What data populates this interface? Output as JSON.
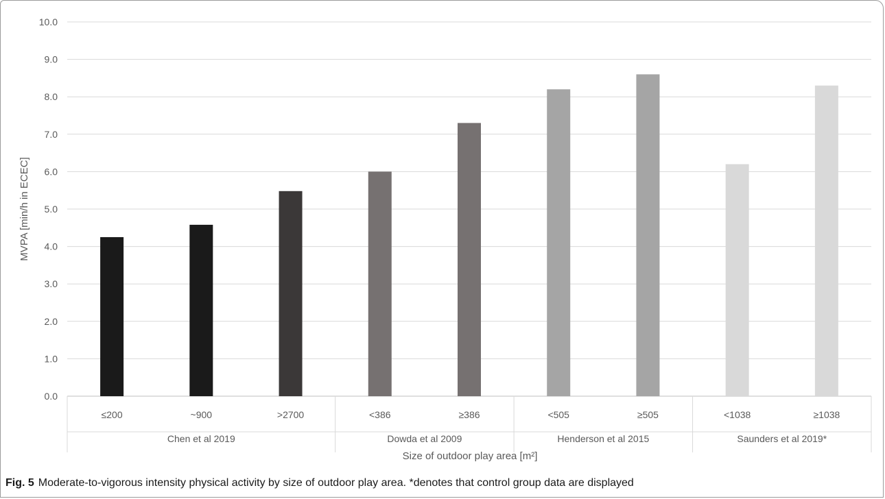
{
  "chart_data": {
    "type": "bar",
    "title": "",
    "ylabel": "MVPA [min/h in ECEC]",
    "xlabel": "Size of outdoor play area [m²]",
    "ylim": [
      0,
      10
    ],
    "yticks": [
      "0.0",
      "1.0",
      "2.0",
      "3.0",
      "4.0",
      "5.0",
      "6.0",
      "7.0",
      "8.0",
      "9.0",
      "10.0"
    ],
    "grid": true,
    "groups": [
      {
        "name": "Chen et al 2019",
        "color": "#1e1c1c",
        "bars": [
          {
            "label": "≤200",
            "value": 4.25,
            "color": "#1a1a1a"
          },
          {
            "label": "~900",
            "value": 4.58,
            "color": "#1a1a1a"
          },
          {
            "label": ">2700",
            "value": 5.48,
            "color": "#3b3838"
          }
        ]
      },
      {
        "name": "Dowda et al 2009",
        "bars": [
          {
            "label": "<386",
            "value": 6.0,
            "color": "#767171"
          },
          {
            "label": "≥386",
            "value": 7.3,
            "color": "#767171"
          }
        ]
      },
      {
        "name": "Henderson et al 2015",
        "bars": [
          {
            "label": "<505",
            "value": 8.2,
            "color": "#a5a5a5"
          },
          {
            "label": "≥505",
            "value": 8.6,
            "color": "#a5a5a5"
          }
        ]
      },
      {
        "name": "Saunders et al 2019*",
        "bars": [
          {
            "label": "<1038",
            "value": 6.2,
            "color": "#d9d9d9"
          },
          {
            "label": "≥1038",
            "value": 8.3,
            "color": "#d9d9d9"
          }
        ]
      }
    ]
  },
  "caption": {
    "label": "Fig. 5",
    "text": "Moderate-to-vigorous intensity physical activity by size of outdoor play area. *denotes that control group data are displayed"
  }
}
